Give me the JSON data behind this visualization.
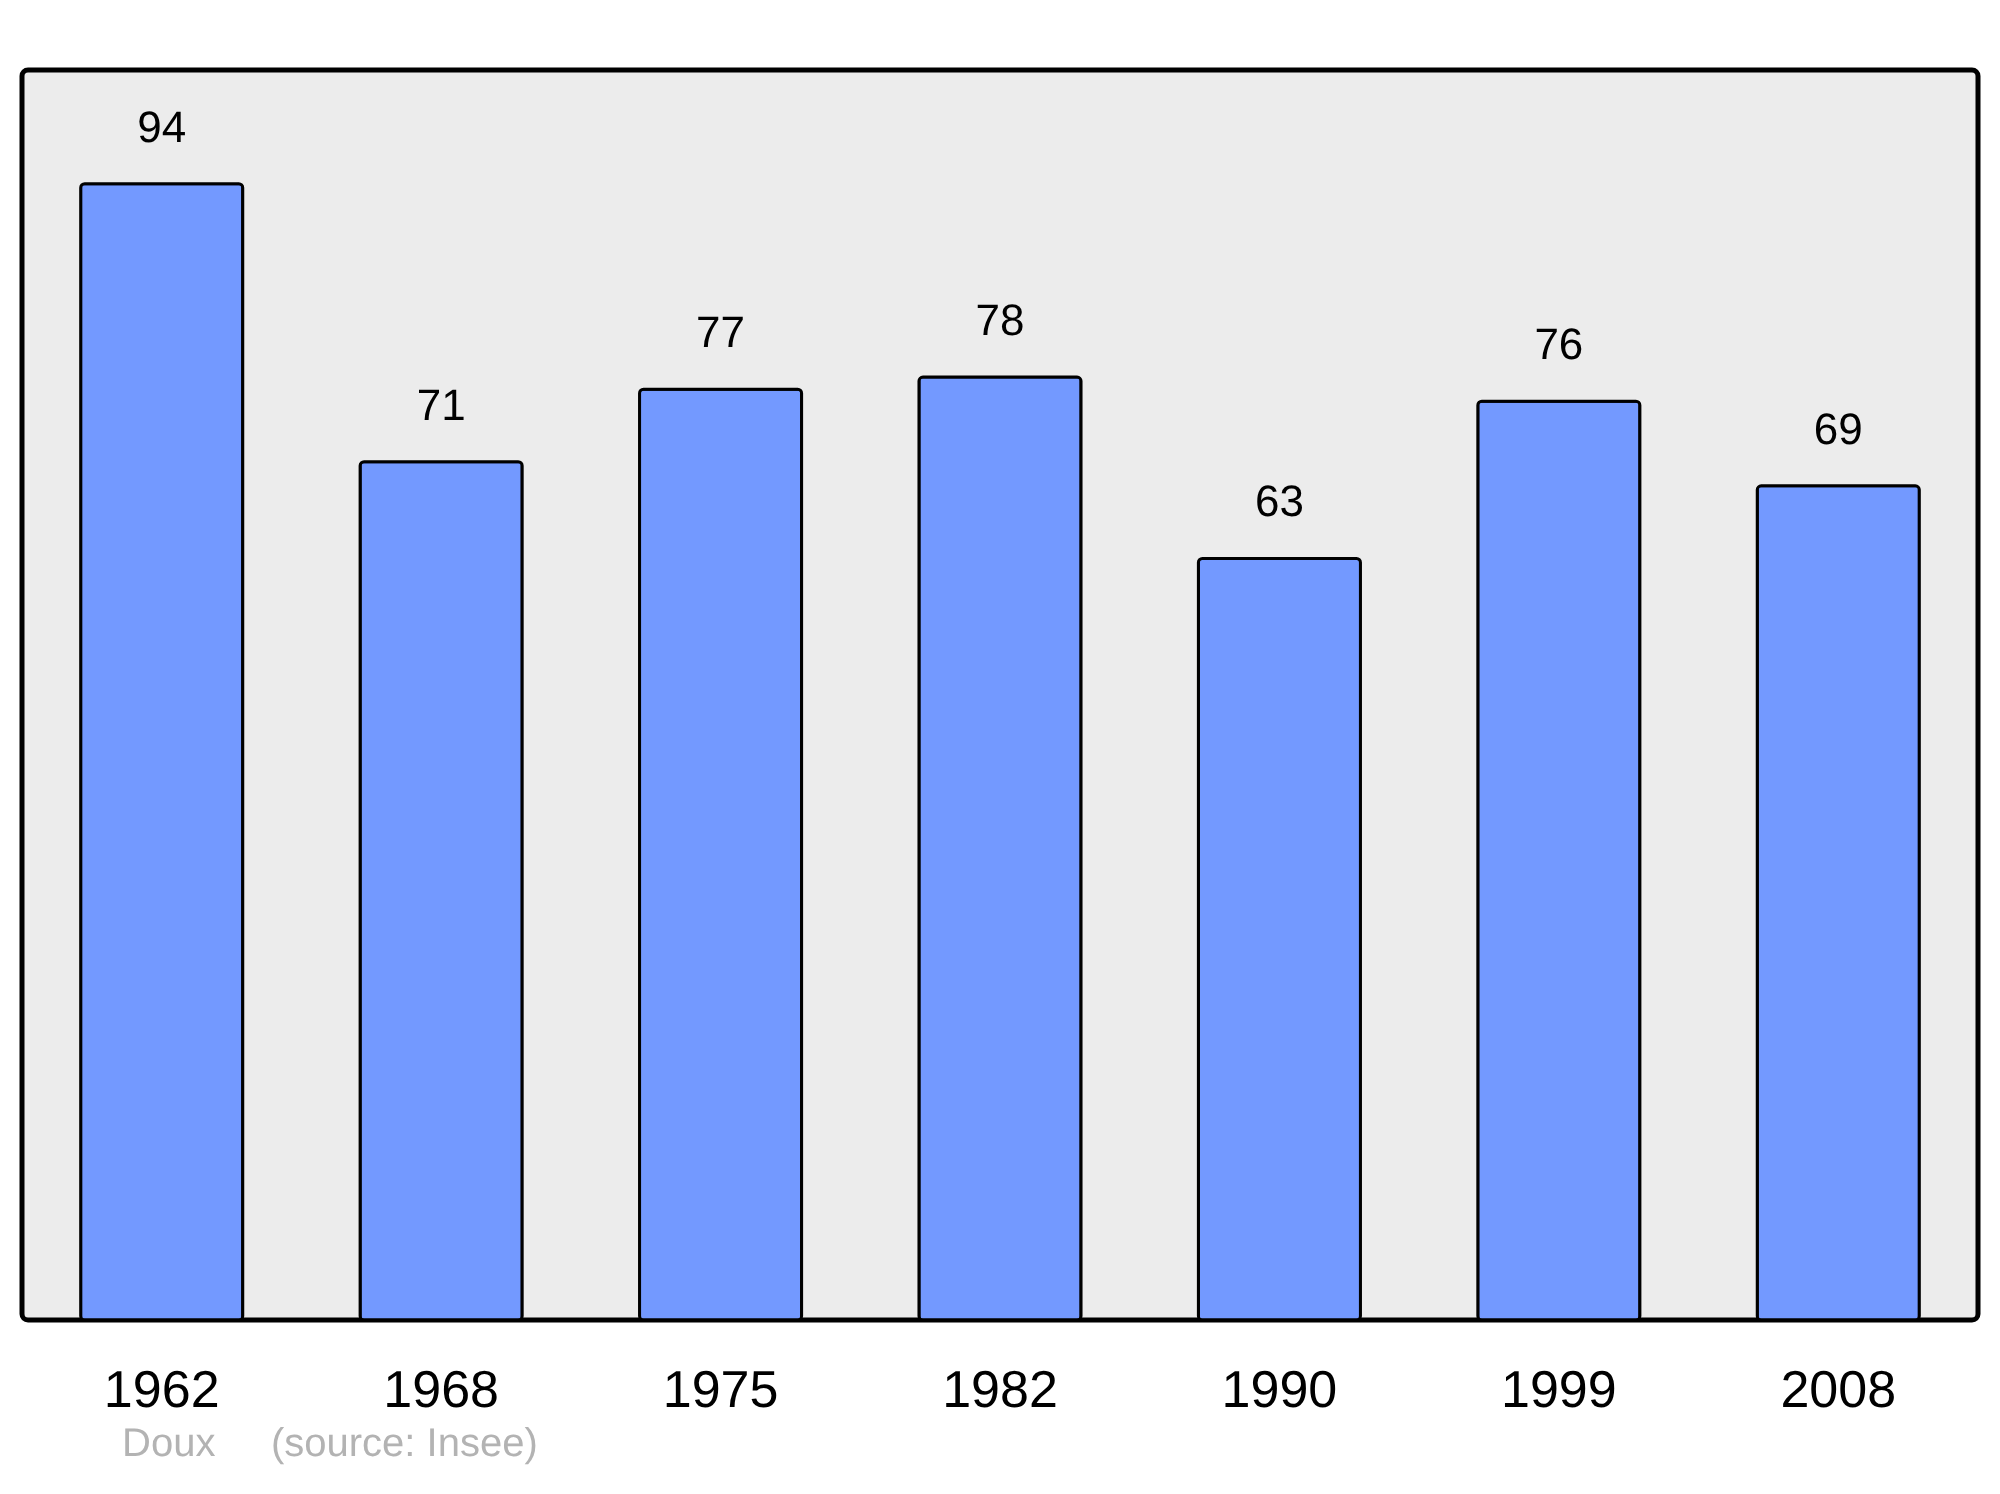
{
  "chart_data": {
    "type": "bar",
    "categories": [
      "1962",
      "1968",
      "1975",
      "1982",
      "1990",
      "1999",
      "2008"
    ],
    "values": [
      94,
      71,
      77,
      78,
      63,
      76,
      69
    ],
    "color": "#7399ff",
    "data_labels": true,
    "annotations": [
      "Doux",
      "(source: Insee)"
    ]
  }
}
